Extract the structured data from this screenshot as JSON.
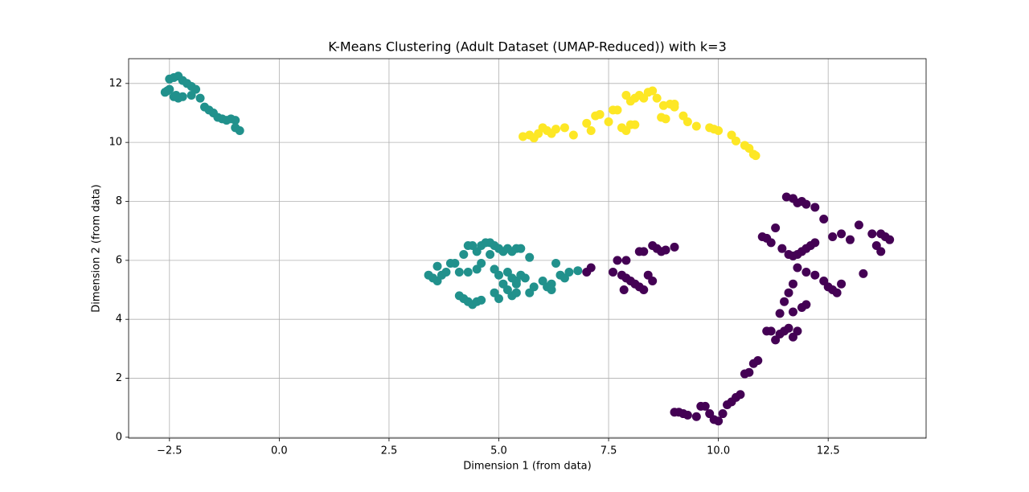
{
  "chart_data": {
    "type": "scatter",
    "title": "K-Means Clustering (Adult Dataset (UMAP-Reduced)) with k=3",
    "x_label": "Dimension 1 (from data)",
    "y_label": "Dimension 2 (from data)",
    "xlim": [
      -3.43,
      14.73
    ],
    "ylim": [
      -0.03,
      12.84
    ],
    "xticks": [
      {
        "value": -2.5,
        "label": "−2.5"
      },
      {
        "value": 0,
        "label": "0.0"
      },
      2.5,
      {
        "value": 5,
        "label": "5.0"
      },
      7.5,
      {
        "value": 10,
        "label": "10.0"
      },
      12.5
    ],
    "yticks": [
      0,
      2,
      4,
      6,
      8,
      10,
      12
    ],
    "grid": true,
    "series": [
      {
        "color": "#21918c",
        "x": [
          -2.6,
          -2.5,
          -2.5,
          -2.4,
          -2.3,
          -2.2,
          -2.1,
          -2.0,
          -1.9,
          -2.4,
          -2.3,
          -2.2,
          -2.0,
          -1.8,
          -1.7,
          -1.6,
          -1.5,
          -1.4,
          -1.3,
          -1.2,
          -1.1,
          -1.0,
          -1.0,
          -0.9,
          -2.55,
          -2.35,
          3.4,
          3.5,
          3.6,
          3.7,
          3.6,
          3.8,
          3.9,
          4.0,
          4.1,
          4.2,
          4.3,
          4.4,
          4.5,
          4.6,
          4.7,
          4.8,
          4.9,
          5.0,
          5.1,
          5.2,
          5.3,
          5.4,
          5.5,
          4.3,
          4.5,
          4.6,
          4.8,
          4.9,
          5.0,
          5.1,
          5.2,
          5.3,
          5.4,
          5.5,
          5.6,
          5.4,
          5.2,
          4.9,
          5.0,
          5.3,
          5.4,
          4.1,
          4.2,
          4.3,
          4.4,
          4.5,
          4.6,
          5.7,
          5.8,
          6.0,
          6.1,
          6.2,
          6.3,
          6.4,
          6.5,
          6.6,
          6.8,
          5.7,
          6.2
        ],
        "y": [
          11.7,
          11.8,
          12.15,
          12.2,
          12.25,
          12.1,
          12.0,
          11.9,
          11.8,
          11.55,
          11.5,
          11.55,
          11.6,
          11.5,
          11.2,
          11.1,
          11.0,
          10.85,
          10.8,
          10.75,
          10.8,
          10.75,
          10.5,
          10.4,
          11.75,
          11.6,
          5.5,
          5.4,
          5.3,
          5.5,
          5.8,
          5.6,
          5.9,
          5.9,
          5.6,
          6.2,
          6.5,
          6.5,
          6.3,
          6.5,
          6.6,
          6.6,
          6.5,
          6.4,
          6.3,
          6.4,
          6.3,
          6.4,
          6.4,
          5.6,
          5.7,
          5.9,
          6.2,
          5.7,
          5.5,
          5.2,
          5.6,
          5.4,
          5.3,
          5.5,
          5.4,
          5.2,
          5.0,
          4.9,
          4.7,
          4.8,
          4.9,
          4.8,
          4.7,
          4.6,
          4.5,
          4.6,
          4.65,
          6.1,
          5.1,
          5.3,
          5.1,
          5.0,
          5.9,
          5.5,
          5.4,
          5.6,
          5.65,
          4.9,
          5.2
        ]
      },
      {
        "color": "#440154",
        "x": [
          7.0,
          7.1,
          7.6,
          7.7,
          7.9,
          7.8,
          7.9,
          8.0,
          8.1,
          8.2,
          8.3,
          7.85,
          8.4,
          8.5,
          8.2,
          8.3,
          8.5,
          8.6,
          8.7,
          8.8,
          9.0,
          9.0,
          9.1,
          9.2,
          9.3,
          9.5,
          9.6,
          9.7,
          9.8,
          9.9,
          10.0,
          10.1,
          10.2,
          10.3,
          10.4,
          10.5,
          10.6,
          10.7,
          10.8,
          10.9,
          11.1,
          11.2,
          11.3,
          11.4,
          11.5,
          11.6,
          11.7,
          11.8,
          11.4,
          11.5,
          11.6,
          11.7,
          11.9,
          12.0,
          11.7,
          11.0,
          11.1,
          11.2,
          11.3,
          11.45,
          11.6,
          11.7,
          11.8,
          11.9,
          12.0,
          12.1,
          12.2,
          11.55,
          11.7,
          11.8,
          11.9,
          12.0,
          12.2,
          12.4,
          12.0,
          12.2,
          12.4,
          12.5,
          12.6,
          12.7,
          12.8,
          11.8,
          12.6,
          12.8,
          13.0,
          13.2,
          13.3,
          13.5,
          13.6,
          13.7,
          13.8,
          13.9,
          13.7
        ],
        "y": [
          5.6,
          5.75,
          5.6,
          6.0,
          6.0,
          5.5,
          5.4,
          5.3,
          5.2,
          5.1,
          5.0,
          5.0,
          5.5,
          5.3,
          6.3,
          6.3,
          6.5,
          6.4,
          6.3,
          6.35,
          6.45,
          0.85,
          0.85,
          0.8,
          0.75,
          0.7,
          1.05,
          1.05,
          0.8,
          0.6,
          0.55,
          0.8,
          1.1,
          1.2,
          1.35,
          1.45,
          2.15,
          2.2,
          2.5,
          2.6,
          3.6,
          3.6,
          3.3,
          3.5,
          3.6,
          3.7,
          3.4,
          3.6,
          4.2,
          4.6,
          4.9,
          5.2,
          4.4,
          4.5,
          4.25,
          6.8,
          6.75,
          6.6,
          7.1,
          6.4,
          6.2,
          6.15,
          6.2,
          6.3,
          6.4,
          6.5,
          6.6,
          8.15,
          8.1,
          7.95,
          8.0,
          7.9,
          7.8,
          7.4,
          5.6,
          5.5,
          5.3,
          5.1,
          5.0,
          4.9,
          5.2,
          5.75,
          6.8,
          6.9,
          6.7,
          7.2,
          5.55,
          6.9,
          6.5,
          6.3,
          6.8,
          6.7,
          6.9
        ]
      },
      {
        "color": "#fde725",
        "x": [
          5.55,
          5.7,
          5.8,
          5.9,
          6.0,
          6.1,
          6.2,
          6.3,
          6.5,
          6.7,
          7.0,
          7.1,
          7.2,
          7.3,
          7.5,
          7.6,
          7.7,
          7.8,
          7.9,
          8.0,
          8.1,
          7.9,
          8.0,
          8.1,
          8.2,
          8.3,
          8.4,
          8.5,
          8.6,
          8.7,
          8.8,
          8.9,
          9.0,
          9.2,
          9.3,
          9.5,
          9.8,
          9.9,
          10.0,
          10.3,
          10.4,
          10.6,
          10.7,
          10.8,
          10.85,
          9.0,
          8.75
        ],
        "y": [
          10.2,
          10.25,
          10.15,
          10.3,
          10.5,
          10.4,
          10.3,
          10.45,
          10.5,
          10.25,
          10.65,
          10.4,
          10.9,
          10.95,
          10.7,
          11.1,
          11.1,
          10.5,
          10.4,
          10.6,
          10.6,
          11.6,
          11.4,
          11.5,
          11.6,
          11.5,
          11.7,
          11.75,
          11.5,
          10.85,
          10.8,
          11.3,
          11.2,
          10.9,
          10.7,
          10.55,
          10.5,
          10.45,
          10.4,
          10.25,
          10.05,
          9.9,
          9.8,
          9.6,
          9.55,
          11.3,
          11.25
        ]
      }
    ]
  }
}
